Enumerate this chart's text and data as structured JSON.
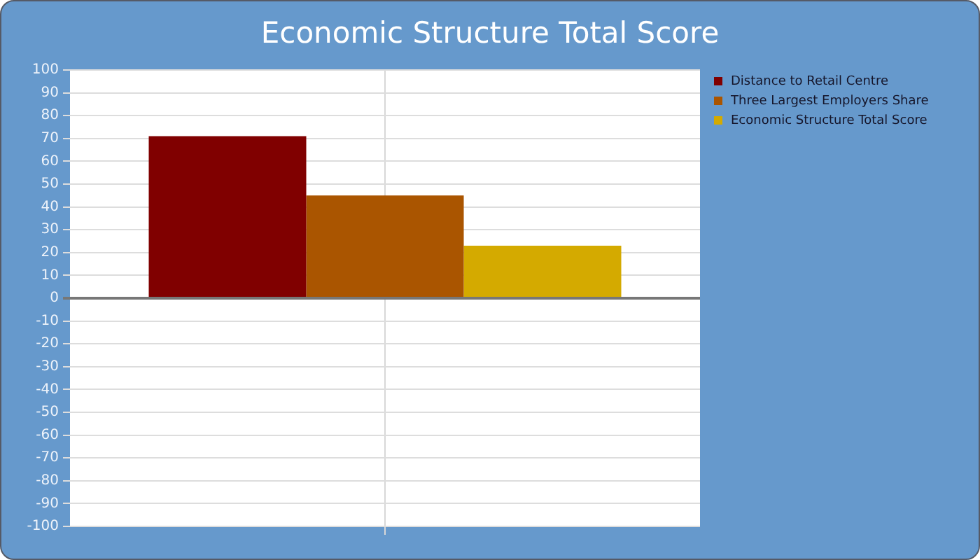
{
  "chart_data": {
    "type": "bar",
    "title": "Economic Structure Total Score",
    "categories": [
      null
    ],
    "series": [
      {
        "name": "Distance to Retail Centre",
        "color": "#800000",
        "values": [
          71
        ]
      },
      {
        "name": "Three Largest Employers Share",
        "color": "#aa5500",
        "values": [
          45
        ]
      },
      {
        "name": "Economic Structure Total Score",
        "color": "#d4aa00",
        "values": [
          23
        ]
      }
    ],
    "ylim": [
      -100,
      100
    ],
    "yticks": [
      -100,
      -90,
      -80,
      -70,
      -60,
      -50,
      -40,
      -30,
      -20,
      -10,
      0,
      10,
      20,
      30,
      40,
      50,
      60,
      70,
      80,
      90,
      100
    ],
    "grid": true,
    "legend": "top right"
  }
}
